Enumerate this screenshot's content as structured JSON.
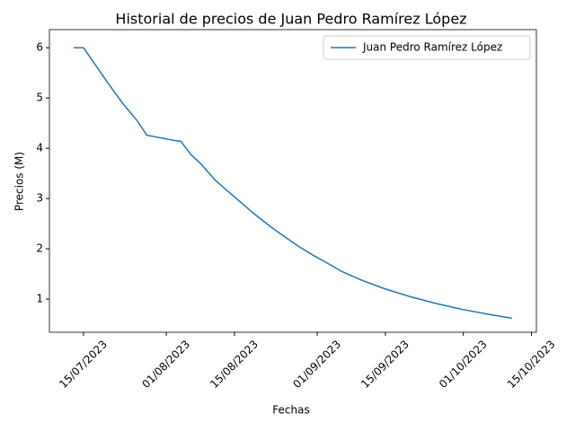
{
  "chart_data": {
    "type": "line",
    "title": "Historial de precios de Juan Pedro Ramírez López",
    "x_label": "Fechas",
    "y_label": "Precios (M)",
    "x": [
      "2023-07-13",
      "2023-07-15",
      "2023-07-17",
      "2023-07-20",
      "2023-07-23",
      "2023-07-26",
      "2023-07-28",
      "2023-08-03",
      "2023-08-04",
      "2023-08-06",
      "2023-08-08",
      "2023-08-11",
      "2023-08-13",
      "2023-08-16",
      "2023-08-19",
      "2023-08-22",
      "2023-08-25",
      "2023-08-28",
      "2023-08-31",
      "2023-09-03",
      "2023-09-06",
      "2023-09-10",
      "2023-09-15",
      "2023-09-20",
      "2023-09-25",
      "2023-10-01",
      "2023-10-06",
      "2023-10-11"
    ],
    "series": [
      {
        "name": "Juan Pedro Ramírez López",
        "color": "#1f77b4",
        "values": [
          6.0,
          6.0,
          5.72,
          5.3,
          4.9,
          4.55,
          4.26,
          4.15,
          4.14,
          3.88,
          3.7,
          3.37,
          3.2,
          2.95,
          2.7,
          2.47,
          2.26,
          2.06,
          1.88,
          1.72,
          1.55,
          1.38,
          1.2,
          1.05,
          0.92,
          0.79,
          0.7,
          0.62
        ]
      }
    ],
    "xlim": [
      "2023-07-08",
      "2023-10-16"
    ],
    "xticks": [
      {
        "value": "2023-07-15",
        "label": "15/07/2023"
      },
      {
        "value": "2023-08-01",
        "label": "01/08/2023"
      },
      {
        "value": "2023-08-15",
        "label": "15/08/2023"
      },
      {
        "value": "2023-09-01",
        "label": "01/09/2023"
      },
      {
        "value": "2023-09-15",
        "label": "15/09/2023"
      },
      {
        "value": "2023-10-01",
        "label": "01/10/2023"
      },
      {
        "value": "2023-10-15",
        "label": "15/10/2023"
      }
    ],
    "ylim": [
      0.34,
      6.36
    ],
    "yticks": [
      1,
      2,
      3,
      4,
      5,
      6
    ],
    "legend": "upper right"
  }
}
